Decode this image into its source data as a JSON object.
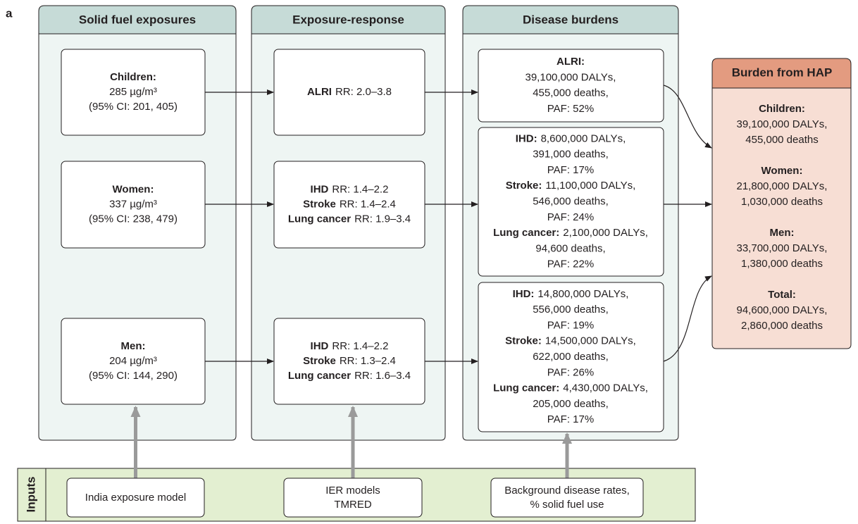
{
  "panel_label": "a",
  "exposures": {
    "title": "Solid fuel exposures",
    "boxes": [
      {
        "group": "Children:",
        "concentration": "285 µg/m³",
        "ci": "(95% CI: 201, 405)"
      },
      {
        "group": "Women:",
        "concentration": "337 µg/m³",
        "ci": "(95% CI: 238, 479)"
      },
      {
        "group": "Men:",
        "concentration": "204 µg/m³",
        "ci": "(95% CI: 144, 290)"
      }
    ]
  },
  "exposure_response": {
    "title": "Exposure-response",
    "boxes": [
      [
        {
          "outcome": "ALRI",
          "rr": "RR: 2.0–3.8"
        }
      ],
      [
        {
          "outcome": "IHD",
          "rr": "RR: 1.4–2.2"
        },
        {
          "outcome": "Stroke",
          "rr": "RR: 1.4–2.4"
        },
        {
          "outcome": "Lung cancer",
          "rr": "RR: 1.9–3.4"
        }
      ],
      [
        {
          "outcome": "IHD",
          "rr": "RR: 1.4–2.2"
        },
        {
          "outcome": "Stroke",
          "rr": "RR: 1.3–2.4"
        },
        {
          "outcome": "Lung cancer",
          "rr": "RR: 1.6–3.4"
        }
      ]
    ]
  },
  "disease_burdens": {
    "title": "Disease burdens",
    "boxes": [
      [
        {
          "outcome": "ALRI:",
          "dalys": "39,100,000 DALYs,",
          "deaths": "455,000 deaths,",
          "paf": "PAF: 52%"
        }
      ],
      [
        {
          "outcome": "IHD:",
          "dalys": "8,600,000 DALYs,",
          "deaths": "391,000 deaths,",
          "paf": "PAF: 17%"
        },
        {
          "outcome": "Stroke:",
          "dalys": "11,100,000 DALYs,",
          "deaths": "546,000 deaths,",
          "paf": "PAF: 24%"
        },
        {
          "outcome": "Lung cancer:",
          "dalys": "2,100,000 DALYs,",
          "deaths": "94,600 deaths,",
          "paf": "PAF: 22%"
        }
      ],
      [
        {
          "outcome": "IHD:",
          "dalys": "14,800,000 DALYs,",
          "deaths": "556,000 deaths,",
          "paf": "PAF: 19%"
        },
        {
          "outcome": "Stroke:",
          "dalys": "14,500,000 DALYs,",
          "deaths": "622,000 deaths,",
          "paf": "PAF: 26%"
        },
        {
          "outcome": "Lung cancer:",
          "dalys": "4,430,000 DALYs,",
          "deaths": "205,000 deaths,",
          "paf": "PAF: 17%"
        }
      ]
    ]
  },
  "burden_from_hap": {
    "title": "Burden from HAP",
    "groups": [
      {
        "group": "Children:",
        "dalys": "39,100,000 DALYs,",
        "deaths": "455,000 deaths"
      },
      {
        "group": "Women:",
        "dalys": "21,800,000 DALYs,",
        "deaths": "1,030,000 deaths"
      },
      {
        "group": "Men:",
        "dalys": "33,700,000 DALYs,",
        "deaths": "1,380,000 deaths"
      },
      {
        "group": "Total:",
        "dalys": "94,600,000 DALYs,",
        "deaths": "2,860,000 deaths"
      }
    ]
  },
  "inputs": {
    "label": "Inputs",
    "items": [
      [
        "India exposure model"
      ],
      [
        "IER models",
        "TMRED"
      ],
      [
        "Background disease rates,",
        "% solid fuel use"
      ]
    ]
  }
}
